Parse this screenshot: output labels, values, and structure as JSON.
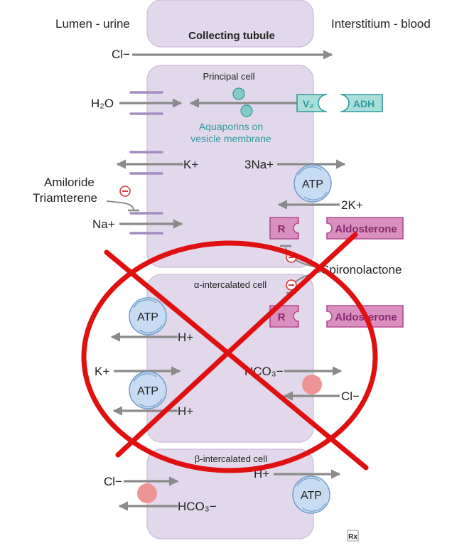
{
  "header": {
    "left": "Lumen - urine",
    "right": "Interstitium - blood",
    "tubule": "Collecting tubule"
  },
  "top_ion": "Cl−",
  "principal": {
    "title": "Principal cell",
    "h2o": "H₂O",
    "aquaporins_line1": "Aquaporins on",
    "aquaporins_line2": "vesicle membrane",
    "v2": "V₂",
    "adh": "ADH",
    "k": "K+",
    "na3": "3Na+",
    "atp": "ATP",
    "k2": "2K+",
    "amiloride": "Amiloride",
    "triamterene": "Triamterene",
    "na": "Na+",
    "r": "R",
    "aldosterone": "Aldosterone",
    "spironolactone": "Spironolactone",
    "minus": "−"
  },
  "alpha": {
    "title": "α-intercalated cell",
    "atp1": "ATP",
    "h1": "H+",
    "r": "R",
    "aldosterone": "Aldosterone",
    "k": "K+",
    "hco3": "HCO₃−",
    "atp2": "ATP",
    "cl": "Cl−",
    "h2": "H+",
    "minus": "−"
  },
  "beta": {
    "title": "β-intercalated cell",
    "cl": "Cl−",
    "h": "H+",
    "hco3": "HCO₃−",
    "atp": "ATP"
  },
  "logo": "Rx",
  "colors": {
    "cell_fill": "#e1d9eb",
    "cell_stroke": "#c9bcd8",
    "arrow": "#8a8a8a",
    "channel": "#a48cc4",
    "teal": "#2f9a9c",
    "teal_fill": "#82cbc9",
    "magenta": "#b14a8e",
    "magenta_fill": "#d98fc0",
    "atp_fill": "#c7dcf3",
    "atp_stroke": "#6f9ccb",
    "inhibit": "#d63a3a",
    "pink": "#ef9494",
    "cross": "#e01010"
  }
}
